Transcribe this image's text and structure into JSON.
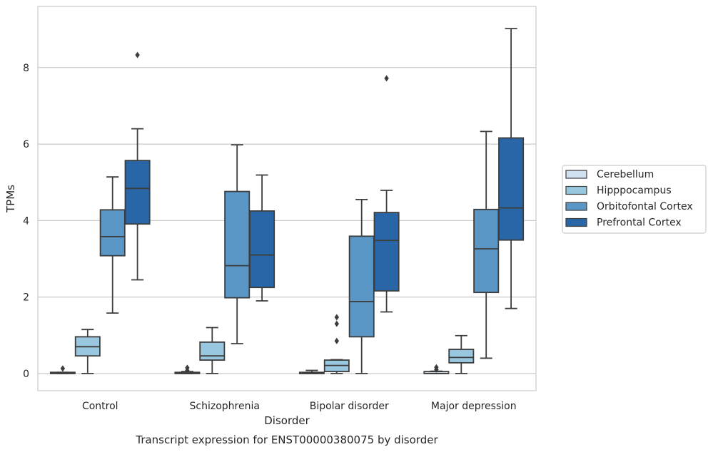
{
  "chart_data": {
    "type": "boxplot",
    "title": "Transcript expression for ENST00000380075 by disorder",
    "xlabel": "Disorder",
    "ylabel": "TPMs",
    "ylim": [
      -0.45,
      9.6
    ],
    "yticks": [
      0,
      2,
      4,
      6,
      8
    ],
    "grid": "horizontal",
    "legend_position": "right",
    "categories": [
      "Control",
      "Schizophrenia",
      "Bipolar disorder",
      "Major depression"
    ],
    "series": [
      {
        "name": "Cerebellum",
        "color": "#d1e1f1",
        "boxes": [
          {
            "min": 0.0,
            "q1": 0.0,
            "median": 0.0,
            "q3": 0.03,
            "max": 0.03,
            "outliers": [
              0.13
            ]
          },
          {
            "min": 0.0,
            "q1": 0.0,
            "median": 0.0,
            "q3": 0.03,
            "max": 0.05,
            "outliers": [
              0.08,
              0.15
            ]
          },
          {
            "min": 0.0,
            "q1": 0.0,
            "median": 0.0,
            "q3": 0.03,
            "max": 0.08,
            "outliers": []
          },
          {
            "min": 0.0,
            "q1": 0.0,
            "median": 0.0,
            "q3": 0.05,
            "max": 0.06,
            "outliers": [
              0.1,
              0.16
            ]
          }
        ]
      },
      {
        "name": "Hipppocampus",
        "color": "#9ac7e0",
        "boxes": [
          {
            "min": 0.0,
            "q1": 0.46,
            "median": 0.7,
            "q3": 0.96,
            "max": 1.15,
            "outliers": []
          },
          {
            "min": 0.0,
            "q1": 0.35,
            "median": 0.46,
            "q3": 0.82,
            "max": 1.2,
            "outliers": []
          },
          {
            "min": 0.0,
            "q1": 0.05,
            "median": 0.21,
            "q3": 0.35,
            "max": 0.36,
            "outliers": [
              0.85,
              1.3,
              1.47
            ]
          },
          {
            "min": 0.0,
            "q1": 0.28,
            "median": 0.42,
            "q3": 0.63,
            "max": 0.99,
            "outliers": []
          }
        ]
      },
      {
        "name": "Orbitofontal Cortex",
        "color": "#5a97c7",
        "boxes": [
          {
            "min": 1.58,
            "q1": 3.08,
            "median": 3.58,
            "q3": 4.28,
            "max": 5.14,
            "outliers": []
          },
          {
            "min": 0.78,
            "q1": 1.98,
            "median": 2.82,
            "q3": 4.76,
            "max": 5.98,
            "outliers": []
          },
          {
            "min": 0.0,
            "q1": 0.96,
            "median": 1.88,
            "q3": 3.59,
            "max": 4.55,
            "outliers": []
          },
          {
            "min": 0.4,
            "q1": 2.12,
            "median": 3.26,
            "q3": 4.29,
            "max": 6.33,
            "outliers": []
          }
        ]
      },
      {
        "name": "Prefrontal Cortex",
        "color": "#2866a7",
        "boxes": [
          {
            "min": 2.45,
            "q1": 3.91,
            "median": 4.84,
            "q3": 5.57,
            "max": 6.4,
            "outliers": [
              8.33
            ]
          },
          {
            "min": 1.9,
            "q1": 2.25,
            "median": 3.1,
            "q3": 4.25,
            "max": 5.19,
            "outliers": []
          },
          {
            "min": 1.61,
            "q1": 2.16,
            "median": 3.48,
            "q3": 4.21,
            "max": 4.79,
            "outliers": [
              7.72
            ]
          },
          {
            "min": 1.7,
            "q1": 3.49,
            "median": 4.33,
            "q3": 6.16,
            "max": 9.02,
            "outliers": []
          }
        ]
      }
    ]
  }
}
